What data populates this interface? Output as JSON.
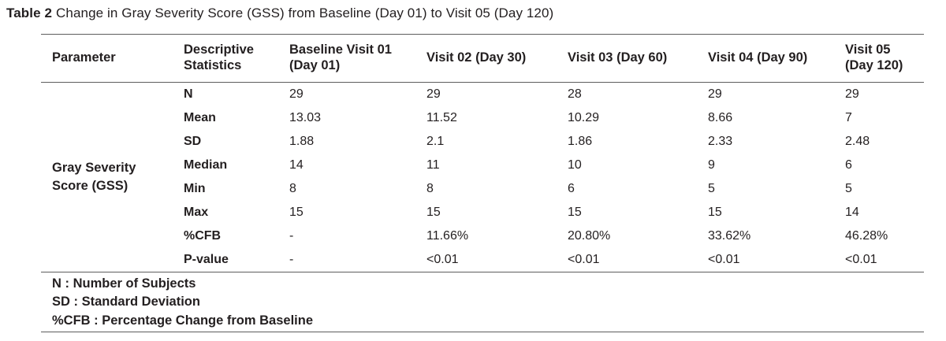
{
  "title": {
    "label": "Table 2",
    "text": "Change in Gray Severity Score (GSS) from Baseline (Day 01) to Visit 05 (Day 120)"
  },
  "table": {
    "columns": [
      "Parameter",
      "Descriptive Statistics",
      "Baseline Visit 01 (Day 01)",
      "Visit 02 (Day 30)",
      "Visit 03 (Day 60)",
      "Visit 04 (Day 90)",
      "Visit 05 (Day 120)"
    ],
    "parameter": "Gray Severity Score (GSS)",
    "rows": [
      {
        "stat": "N",
        "values": [
          "29",
          "29",
          "28",
          "29",
          "29"
        ]
      },
      {
        "stat": "Mean",
        "values": [
          "13.03",
          "11.52",
          "10.29",
          "8.66",
          "7"
        ]
      },
      {
        "stat": "SD",
        "values": [
          "1.88",
          "2.1",
          "1.86",
          "2.33",
          "2.48"
        ]
      },
      {
        "stat": "Median",
        "values": [
          "14",
          "11",
          "10",
          "9",
          "6"
        ]
      },
      {
        "stat": "Min",
        "values": [
          "8",
          "8",
          "6",
          "5",
          "5"
        ]
      },
      {
        "stat": "Max",
        "values": [
          "15",
          "15",
          "15",
          "15",
          "14"
        ]
      },
      {
        "stat": "%CFB",
        "values": [
          "-",
          "11.66%",
          "20.80%",
          "33.62%",
          "46.28%"
        ]
      },
      {
        "stat": "P-value",
        "values": [
          "-",
          "<0.01",
          "<0.01",
          "<0.01",
          "<0.01"
        ]
      }
    ],
    "footnotes": [
      "N : Number of Subjects",
      "SD : Standard Deviation",
      "%CFB : Percentage Change from Baseline"
    ]
  },
  "colors": {
    "text": "#231f20",
    "rule": "#5d5d5d",
    "background": "#ffffff"
  }
}
